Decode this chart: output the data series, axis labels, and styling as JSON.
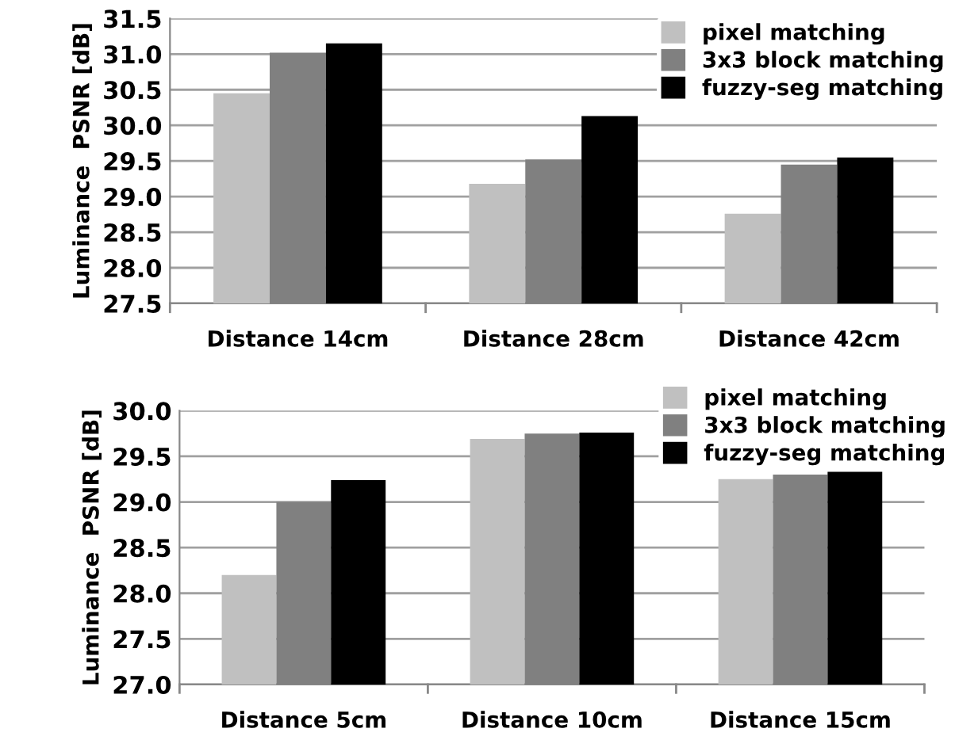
{
  "chart_data": [
    {
      "type": "bar",
      "ylabel": "Luminance  PSNR [dB]",
      "categories": [
        "Distance 14cm",
        "Distance 28cm",
        "Distance 42cm"
      ],
      "series": [
        {
          "name": "pixel matching",
          "color": "#c0c0c0",
          "values": [
            30.45,
            29.18,
            28.76
          ]
        },
        {
          "name": "3x3 block matching",
          "color": "#808080",
          "values": [
            31.02,
            29.52,
            29.45
          ]
        },
        {
          "name": "fuzzy-seg matching",
          "color": "#000000",
          "values": [
            31.15,
            30.13,
            29.55
          ]
        }
      ],
      "ylim": [
        27.5,
        31.5
      ],
      "yticks": [
        27.5,
        {
          "value": 28,
          "label": "28.0"
        },
        28.5,
        {
          "value": 29,
          "label": "29.0"
        },
        29.5,
        {
          "value": 30,
          "label": "30.0"
        },
        30.5,
        {
          "value": 31,
          "label": "31.0"
        },
        31.5
      ],
      "grid": "y",
      "legend": "top right"
    },
    {
      "type": "bar",
      "ylabel": "Luminance  PSNR [dB]",
      "categories": [
        "Distance 5cm",
        "Distance 10cm",
        "Distance 15cm"
      ],
      "series": [
        {
          "name": "pixel matching",
          "color": "#c0c0c0",
          "values": [
            28.2,
            29.69,
            29.25
          ]
        },
        {
          "name": "3x3 block matching",
          "color": "#808080",
          "values": [
            29.0,
            29.75,
            29.3
          ]
        },
        {
          "name": "fuzzy-seg matching",
          "color": "#000000",
          "values": [
            29.24,
            29.76,
            29.33
          ]
        }
      ],
      "ylim": [
        27.0,
        30.0
      ],
      "yticks": [
        {
          "value": 27,
          "label": "27.0"
        },
        27.5,
        {
          "value": 28,
          "label": "28.0"
        },
        28.5,
        {
          "value": 29,
          "label": "29.0"
        },
        29.5,
        {
          "value": 30,
          "label": "30.0"
        }
      ],
      "grid": "y",
      "legend": "top right"
    }
  ]
}
